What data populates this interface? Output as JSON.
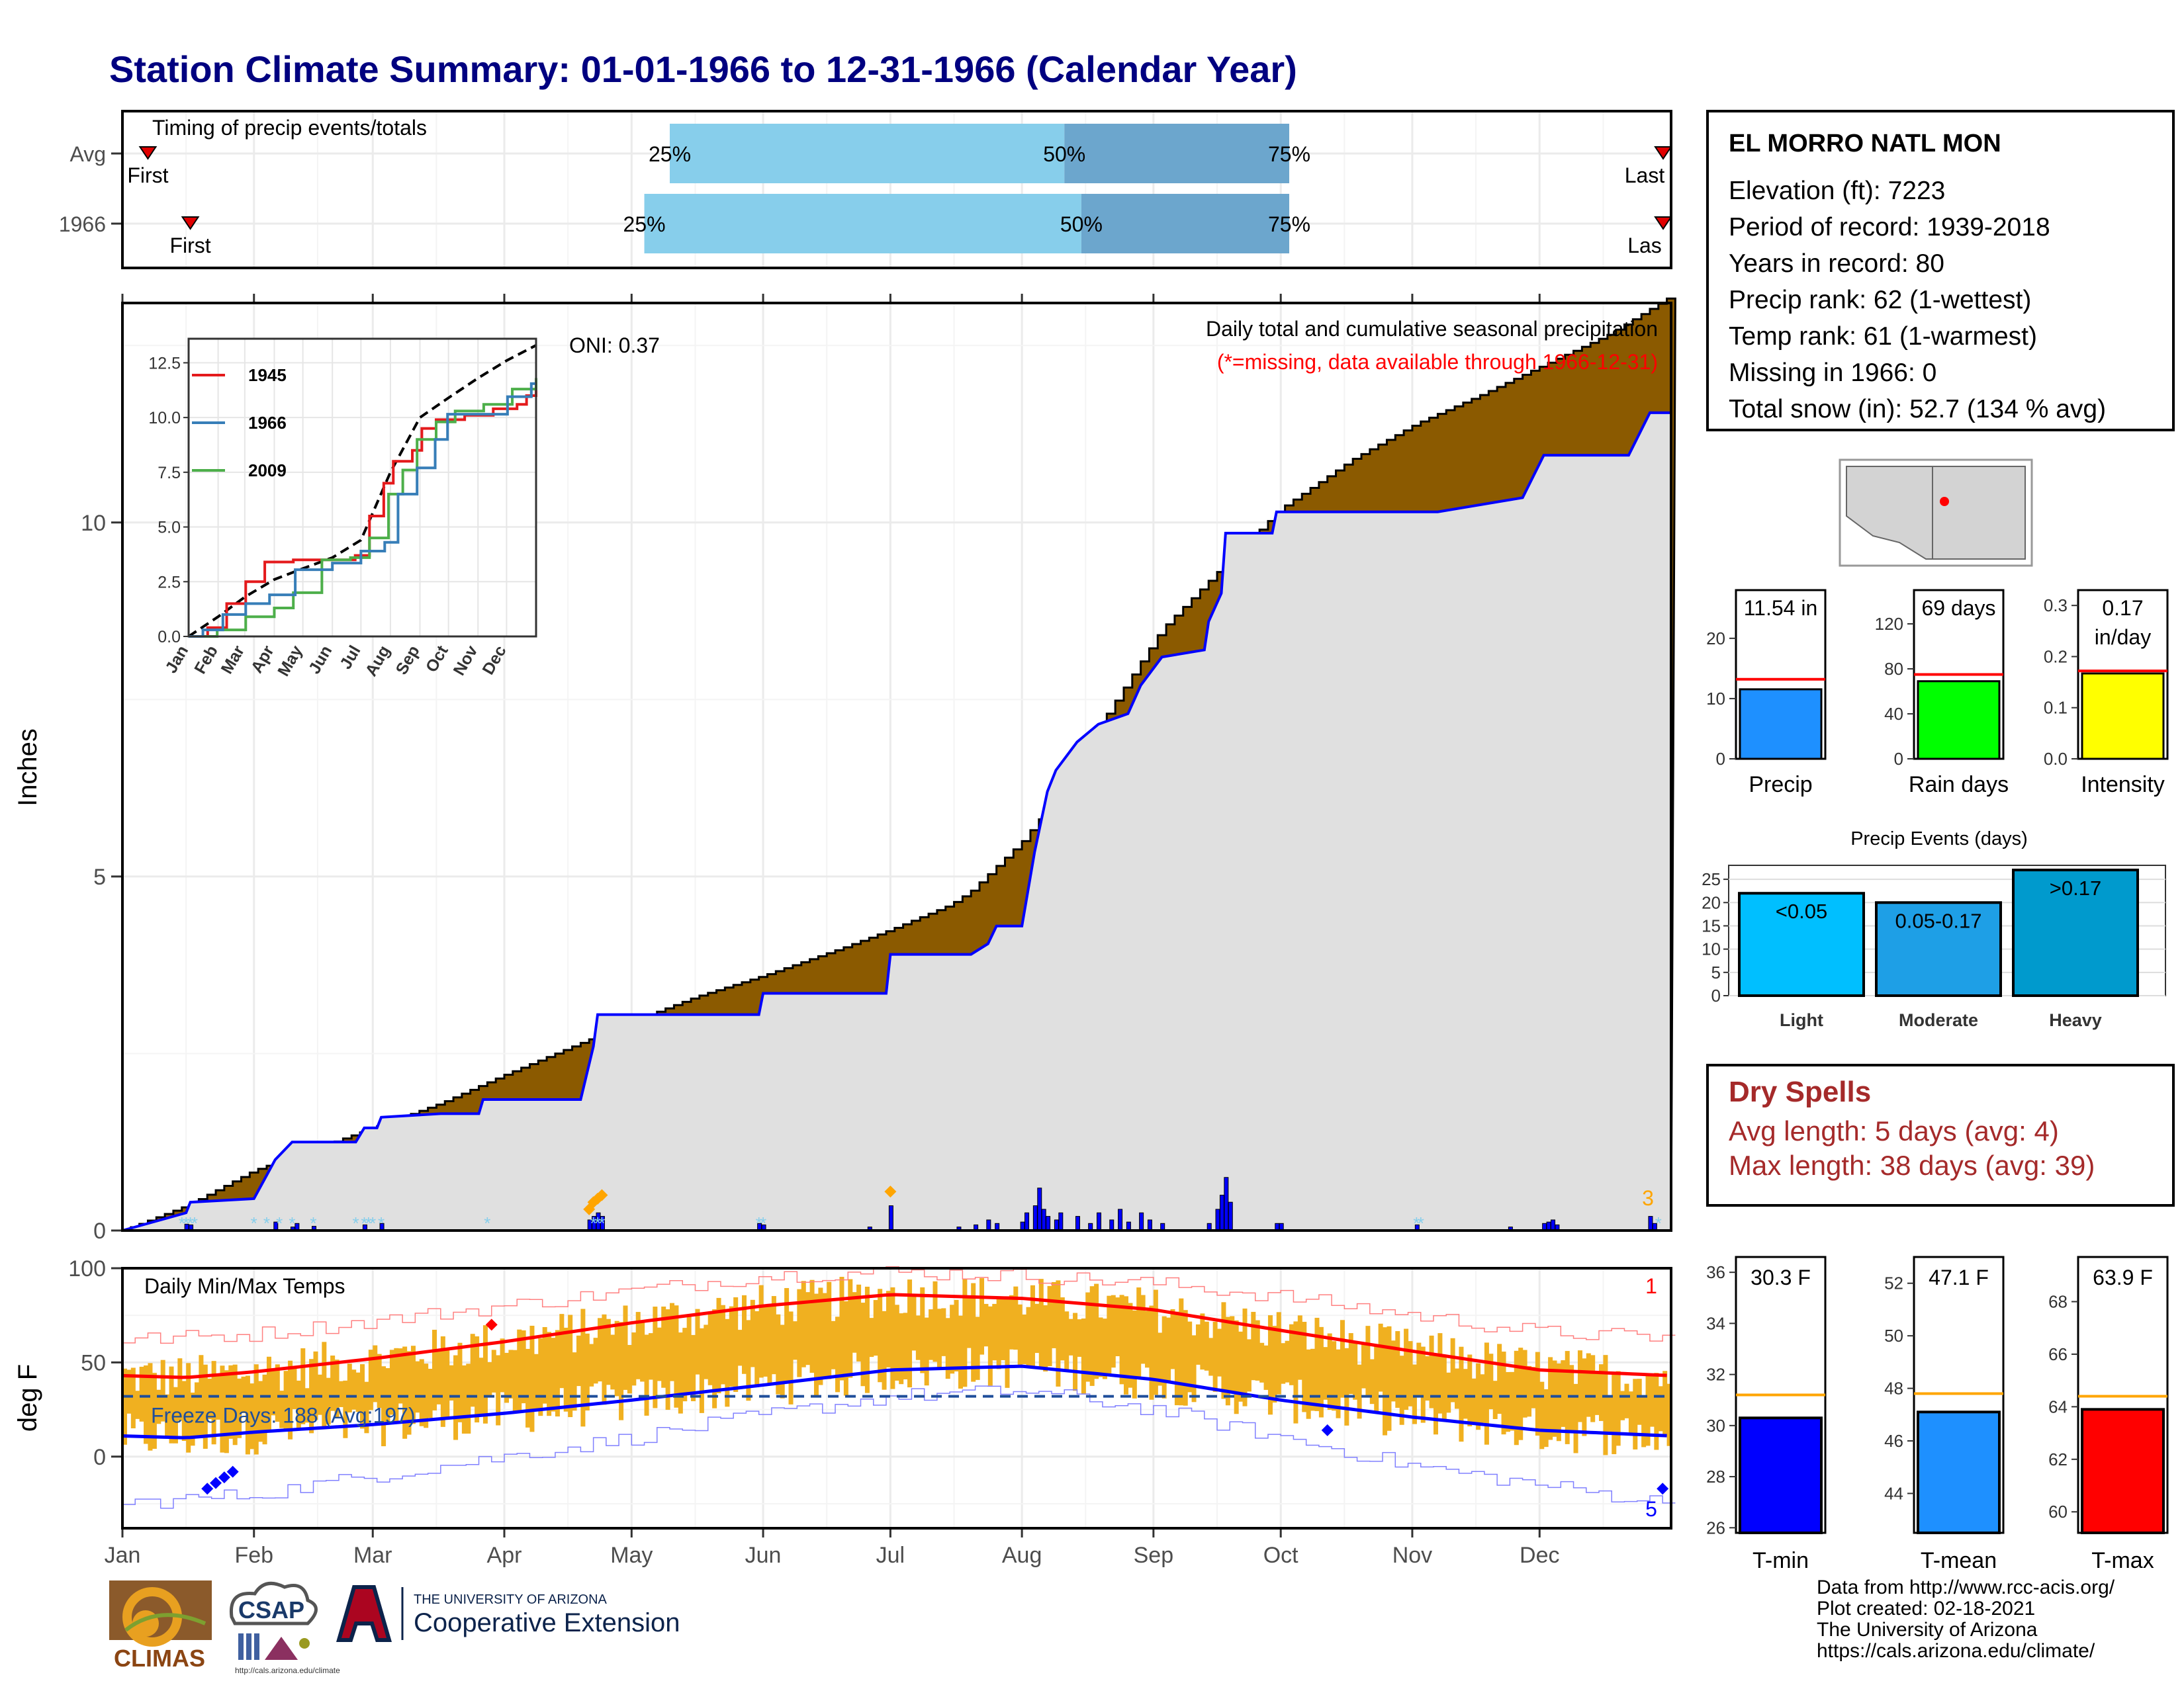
{
  "title": "Station Climate Summary: 01-01-1966 to 12-31-1966 (Calendar Year)",
  "colors": {
    "title": "#000080",
    "cum_fill": "#8B5A00",
    "avg_fill": "#E0E0E0",
    "daily_bar": "#0000FF",
    "snow": "#87CEEB",
    "temp_bar": "#F0B020",
    "tmax_line": "#FF0000",
    "tmin_line": "#0000FF",
    "dry": "#A52A2A",
    "q25": "#87CEEB",
    "q50": "#6CA6CD"
  },
  "timing": {
    "title": "Timing of precip events/totals",
    "rows": [
      {
        "label": "Avg",
        "first_label": "First",
        "last_label": "Last",
        "first_day": 6,
        "last_day": 364,
        "q25_day": 129,
        "q50_day": 222,
        "q75_day": 275,
        "q25_label": "25%",
        "q50_label": "50%",
        "q75_label": "75%"
      },
      {
        "label": "1966",
        "first_label": "First",
        "last_label": "Las",
        "first_day": 16,
        "last_day": 367,
        "q25_day": 123,
        "q50_day": 226,
        "q75_day": 275,
        "q25_label": "25%",
        "q50_label": "50%",
        "q75_label": "75%"
      }
    ]
  },
  "precip": {
    "ylabel": "Inches",
    "yticks": [
      0,
      5,
      10
    ],
    "ymax": 13.0,
    "oni": "ONI: 0.37",
    "annotation1": "Daily total and cumulative seasonal precipitation",
    "annotation2": "(*=missing, data available through 1966-12-31)",
    "corner_label": "3",
    "avg_cum": [
      [
        0,
        0
      ],
      [
        15,
        0.35
      ],
      [
        31,
        0.85
      ],
      [
        45,
        1.15
      ],
      [
        59,
        1.45
      ],
      [
        75,
        1.8
      ],
      [
        90,
        2.2
      ],
      [
        110,
        2.7
      ],
      [
        120,
        2.95
      ],
      [
        135,
        3.3
      ],
      [
        151,
        3.6
      ],
      [
        170,
        4.0
      ],
      [
        181,
        4.25
      ],
      [
        195,
        4.6
      ],
      [
        200,
        4.8
      ],
      [
        212,
        5.5
      ],
      [
        225,
        6.5
      ],
      [
        232,
        7.3
      ],
      [
        245,
        8.5
      ],
      [
        258,
        9.3
      ],
      [
        273,
        10.2
      ],
      [
        290,
        10.9
      ],
      [
        305,
        11.4
      ],
      [
        320,
        11.8
      ],
      [
        334,
        12.2
      ],
      [
        350,
        12.65
      ],
      [
        365,
        13.2
      ]
    ],
    "cum_1966": [
      [
        0,
        0
      ],
      [
        15,
        0.25
      ],
      [
        16,
        0.4
      ],
      [
        31,
        0.45
      ],
      [
        36,
        1.0
      ],
      [
        40,
        1.25
      ],
      [
        55,
        1.25
      ],
      [
        57,
        1.45
      ],
      [
        60,
        1.45
      ],
      [
        61,
        1.6
      ],
      [
        75,
        1.65
      ],
      [
        84,
        1.65
      ],
      [
        85,
        1.85
      ],
      [
        108,
        1.85
      ],
      [
        111,
        2.6
      ],
      [
        112,
        3.05
      ],
      [
        150,
        3.05
      ],
      [
        151,
        3.35
      ],
      [
        180,
        3.35
      ],
      [
        181,
        3.9
      ],
      [
        200,
        3.9
      ],
      [
        204,
        4.05
      ],
      [
        206,
        4.3
      ],
      [
        212,
        4.3
      ],
      [
        215,
        5.35
      ],
      [
        218,
        6.2
      ],
      [
        220,
        6.5
      ],
      [
        225,
        6.9
      ],
      [
        230,
        7.15
      ],
      [
        237,
        7.3
      ],
      [
        240,
        7.7
      ],
      [
        245,
        8.1
      ],
      [
        255,
        8.2
      ],
      [
        256,
        8.6
      ],
      [
        259,
        9.0
      ],
      [
        260,
        9.85
      ],
      [
        271,
        9.85
      ],
      [
        272,
        10.15
      ],
      [
        310,
        10.15
      ],
      [
        330,
        10.35
      ],
      [
        335,
        10.95
      ],
      [
        355,
        10.95
      ],
      [
        360,
        11.55
      ],
      [
        365,
        11.55
      ]
    ],
    "daily": [
      [
        15,
        0.09
      ],
      [
        16,
        0.08
      ],
      [
        36,
        0.12
      ],
      [
        40,
        0.05
      ],
      [
        41,
        0.1
      ],
      [
        45,
        0.06
      ],
      [
        57,
        0.08
      ],
      [
        61,
        0.1
      ],
      [
        110,
        0.15
      ],
      [
        111,
        0.2
      ],
      [
        112,
        0.25
      ],
      [
        113,
        0.2
      ],
      [
        150,
        0.1
      ],
      [
        151,
        0.08
      ],
      [
        176,
        0.05
      ],
      [
        181,
        0.35
      ],
      [
        197,
        0.05
      ],
      [
        201,
        0.08
      ],
      [
        204,
        0.15
      ],
      [
        206,
        0.1
      ],
      [
        212,
        0.12
      ],
      [
        213,
        0.25
      ],
      [
        215,
        0.35
      ],
      [
        216,
        0.6
      ],
      [
        217,
        0.3
      ],
      [
        218,
        0.2
      ],
      [
        220,
        0.15
      ],
      [
        221,
        0.25
      ],
      [
        225,
        0.2
      ],
      [
        228,
        0.1
      ],
      [
        230,
        0.25
      ],
      [
        233,
        0.15
      ],
      [
        235,
        0.3
      ],
      [
        237,
        0.12
      ],
      [
        240,
        0.25
      ],
      [
        242,
        0.15
      ],
      [
        245,
        0.1
      ],
      [
        256,
        0.1
      ],
      [
        258,
        0.3
      ],
      [
        259,
        0.5
      ],
      [
        260,
        0.75
      ],
      [
        261,
        0.4
      ],
      [
        272,
        0.1
      ],
      [
        273,
        0.1
      ],
      [
        305,
        0.08
      ],
      [
        327,
        0.05
      ],
      [
        335,
        0.1
      ],
      [
        336,
        0.12
      ],
      [
        337,
        0.15
      ],
      [
        338,
        0.08
      ],
      [
        360,
        0.2
      ],
      [
        361,
        0.1
      ]
    ]
  },
  "inset": {
    "yticks": [
      "0.0",
      "2.5",
      "5.0",
      "7.5",
      "10.0",
      "12.5"
    ],
    "months": [
      "Jan",
      "Feb",
      "Mar",
      "Apr",
      "May",
      "Jun",
      "Jul",
      "Aug",
      "Sep",
      "Oct",
      "Nov",
      "Dec"
    ],
    "legend": [
      "1945",
      "1966",
      "2009"
    ],
    "avg": [
      [
        0,
        0
      ],
      [
        31,
        0.9
      ],
      [
        59,
        1.8
      ],
      [
        90,
        2.6
      ],
      [
        120,
        3.1
      ],
      [
        151,
        3.6
      ],
      [
        181,
        4.4
      ],
      [
        212,
        7.5
      ],
      [
        243,
        10.0
      ],
      [
        273,
        10.9
      ],
      [
        304,
        11.8
      ],
      [
        334,
        12.6
      ],
      [
        365,
        13.3
      ]
    ],
    "s1945": [
      [
        0,
        0
      ],
      [
        20,
        0.4
      ],
      [
        40,
        1.5
      ],
      [
        60,
        2.5
      ],
      [
        80,
        3.4
      ],
      [
        110,
        3.5
      ],
      [
        150,
        3.5
      ],
      [
        175,
        3.7
      ],
      [
        190,
        5.5
      ],
      [
        205,
        7.0
      ],
      [
        215,
        8.0
      ],
      [
        235,
        8.5
      ],
      [
        245,
        9.5
      ],
      [
        260,
        9.9
      ],
      [
        290,
        10.1
      ],
      [
        320,
        10.4
      ],
      [
        345,
        10.6
      ],
      [
        355,
        11.0
      ],
      [
        365,
        11.5
      ]
    ],
    "s1966": [
      [
        0,
        0
      ],
      [
        15,
        0.3
      ],
      [
        36,
        1.0
      ],
      [
        60,
        1.5
      ],
      [
        85,
        1.9
      ],
      [
        112,
        3.05
      ],
      [
        151,
        3.35
      ],
      [
        181,
        3.9
      ],
      [
        206,
        4.3
      ],
      [
        220,
        6.5
      ],
      [
        240,
        7.7
      ],
      [
        259,
        9.0
      ],
      [
        272,
        10.15
      ],
      [
        310,
        10.15
      ],
      [
        335,
        10.95
      ],
      [
        360,
        11.55
      ],
      [
        365,
        11.55
      ]
    ],
    "s2009": [
      [
        0,
        0
      ],
      [
        30,
        0.3
      ],
      [
        60,
        0.9
      ],
      [
        90,
        1.3
      ],
      [
        110,
        2.0
      ],
      [
        140,
        3.5
      ],
      [
        170,
        3.6
      ],
      [
        190,
        4.5
      ],
      [
        210,
        6.5
      ],
      [
        225,
        7.6
      ],
      [
        240,
        9.0
      ],
      [
        260,
        9.8
      ],
      [
        280,
        10.3
      ],
      [
        310,
        10.6
      ],
      [
        340,
        11.3
      ],
      [
        365,
        11.8
      ]
    ]
  },
  "temps": {
    "title": "Daily Min/Max Temps",
    "ylabel": "deg F",
    "yticks": [
      0,
      50,
      100
    ],
    "ymin": -38,
    "ymax": 100,
    "freeze_label": "Freeze Days: 188 (Avg:197)",
    "freeze_line": 32,
    "corner_top": "1",
    "corner_bottom": "5",
    "months": [
      "Jan",
      "Feb",
      "Mar",
      "Apr",
      "May",
      "Jun",
      "Jul",
      "Aug",
      "Sep",
      "Oct",
      "Nov",
      "Dec"
    ],
    "tmax_avg": [
      [
        0,
        43
      ],
      [
        15,
        42
      ],
      [
        31,
        45
      ],
      [
        59,
        52
      ],
      [
        90,
        61
      ],
      [
        120,
        71
      ],
      [
        151,
        80
      ],
      [
        181,
        86
      ],
      [
        212,
        84
      ],
      [
        243,
        78
      ],
      [
        273,
        67
      ],
      [
        304,
        56
      ],
      [
        334,
        46
      ],
      [
        365,
        43
      ]
    ],
    "tmin_avg": [
      [
        0,
        11
      ],
      [
        15,
        10
      ],
      [
        31,
        13
      ],
      [
        59,
        17
      ],
      [
        90,
        23
      ],
      [
        120,
        30
      ],
      [
        151,
        38
      ],
      [
        181,
        46
      ],
      [
        212,
        48
      ],
      [
        243,
        41
      ],
      [
        273,
        30
      ],
      [
        304,
        21
      ],
      [
        334,
        14
      ],
      [
        365,
        11
      ]
    ],
    "rec_high": [
      [
        0,
        62
      ],
      [
        31,
        65
      ],
      [
        59,
        72
      ],
      [
        90,
        80
      ],
      [
        120,
        88
      ],
      [
        151,
        96
      ],
      [
        181,
        98
      ],
      [
        212,
        96
      ],
      [
        243,
        92
      ],
      [
        273,
        85
      ],
      [
        304,
        75
      ],
      [
        334,
        66
      ],
      [
        365,
        63
      ]
    ],
    "rec_low": [
      [
        0,
        -25
      ],
      [
        31,
        -20
      ],
      [
        59,
        -10
      ],
      [
        90,
        0
      ],
      [
        120,
        10
      ],
      [
        151,
        22
      ],
      [
        181,
        32
      ],
      [
        212,
        35
      ],
      [
        243,
        25
      ],
      [
        273,
        10
      ],
      [
        304,
        -5
      ],
      [
        334,
        -15
      ],
      [
        365,
        -25
      ]
    ]
  },
  "summary_bars": [
    {
      "name": "Precip",
      "value_label": "11.54 in",
      "value": 11.54,
      "avg": 13.2,
      "ymin": 0,
      "ymax": 28,
      "ticks": [
        0,
        10,
        20
      ],
      "color": "#1E90FF"
    },
    {
      "name": "Rain days",
      "value_label": "69 days",
      "value": 69,
      "avg": 75,
      "ymin": 0,
      "ymax": 150,
      "ticks": [
        0,
        40,
        80,
        120
      ],
      "color": "#00FF00"
    },
    {
      "name": "Intensity",
      "value_label": "0.17",
      "value_label2": "in/day",
      "value": 0.167,
      "avg": 0.172,
      "ymin": 0,
      "ymax": 0.33,
      "ticks": [
        "0.0",
        "0.1",
        "0.2",
        "0.3"
      ],
      "color": "#FFFF00"
    }
  ],
  "events": {
    "title": "Precip Events (days)",
    "ticks": [
      0,
      5,
      10,
      15,
      20,
      25
    ],
    "bars": [
      {
        "name": "Light",
        "label": "<0.05",
        "value": 22,
        "color": "#00BFFF"
      },
      {
        "name": "Moderate",
        "label": "0.05-0.17",
        "value": 20,
        "color": "#1E9FE6"
      },
      {
        "name": "Heavy",
        "label": ">0.17",
        "value": 27,
        "color": "#009ACD"
      }
    ]
  },
  "temp_bars": [
    {
      "name": "T-min",
      "value_label": "30.3 F",
      "value": 30.3,
      "avg": 31.2,
      "ymin": 25.8,
      "ymax": 36.6,
      "ticks": [
        26,
        28,
        30,
        32,
        34,
        36
      ],
      "color": "#0000FF"
    },
    {
      "name": "T-mean",
      "value_label": "47.1 F",
      "value": 47.1,
      "avg": 47.8,
      "ymin": 42.5,
      "ymax": 53.0,
      "ticks": [
        44,
        46,
        48,
        50,
        52
      ],
      "color": "#1E90FF"
    },
    {
      "name": "T-max",
      "value_label": "63.9 F",
      "value": 63.9,
      "avg": 64.4,
      "ymin": 59.2,
      "ymax": 69.7,
      "ticks": [
        60,
        62,
        64,
        66,
        68
      ],
      "color": "#FF0000"
    }
  ],
  "station": {
    "name": "EL MORRO NATL MON",
    "lines": [
      "Elevation (ft): 7223",
      "Period of record: 1939-2018",
      "Years in record: 80",
      "Precip rank: 62 (1-wettest)",
      "Temp rank: 61 (1-warmest)",
      "Missing in 1966: 0",
      "Total snow (in): 52.7 (134 % avg)"
    ]
  },
  "dry_spells": {
    "title": "Dry Spells",
    "line1": "Avg length: 5 days (avg: 4)",
    "line2": "Max length: 38 days (avg: 39)"
  },
  "credits": [
    "Data from http://www.rcc-acis.org/",
    "Plot created: 02-18-2021",
    "The University of Arizona",
    "https://cals.arizona.edu/climate/"
  ],
  "logos": {
    "climas": "CLIMAS",
    "csap": "CSAP",
    "csap_url": "http://cals.arizona.edu/climate",
    "ua_small": "THE UNIVERSITY OF ARIZONA",
    "ua_big": "Cooperative Extension"
  }
}
